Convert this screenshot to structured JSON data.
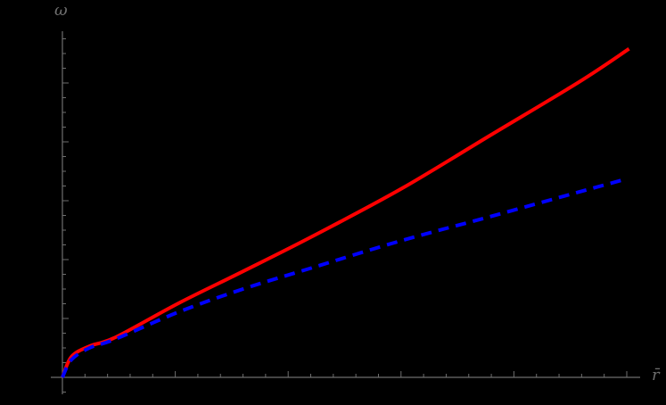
{
  "chart_data": {
    "type": "line",
    "title": "",
    "xlabel": "r̄",
    "ylabel": "ω",
    "x_tick_labels": [],
    "y_tick_labels": [],
    "grid": false,
    "legend": null,
    "units_note": "Axes carry no numeric labels; values expressed in major-tick units",
    "xlim": [
      -0.1,
      5.2
    ],
    "ylim": [
      -0.3,
      5.8
    ],
    "series": [
      {
        "name": "red-solid",
        "color": "#ff0000",
        "style": "solid",
        "x": [
          0,
          0.08,
          0.24,
          0.47,
          1.03,
          1.6,
          2.21,
          3.0,
          3.79,
          4.58,
          5.02
        ],
        "y": [
          0,
          0.35,
          0.53,
          0.68,
          1.26,
          1.8,
          2.39,
          3.2,
          4.11,
          5.02,
          5.58
        ]
      },
      {
        "name": "blue-dashed",
        "color": "#0000ff",
        "style": "dashed",
        "x": [
          0,
          0.08,
          0.24,
          0.47,
          1.03,
          1.6,
          2.21,
          3.0,
          3.79,
          4.58,
          4.96
        ],
        "y": [
          0,
          0.3,
          0.5,
          0.65,
          1.11,
          1.5,
          1.86,
          2.32,
          2.73,
          3.15,
          3.35
        ]
      }
    ]
  },
  "axes": {
    "x_label": "r̄",
    "y_label": "ω",
    "color": "#6e6e6e"
  }
}
